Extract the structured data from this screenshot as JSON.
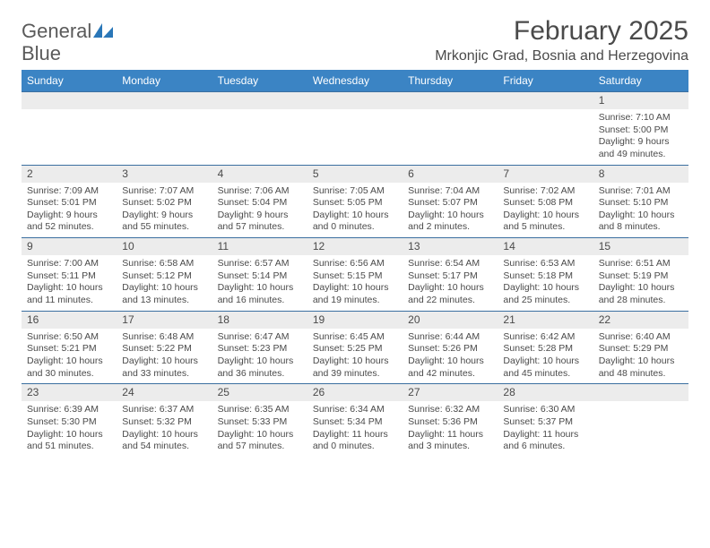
{
  "brand": {
    "name_part1": "General",
    "name_part2": "Blue"
  },
  "title": "February 2025",
  "location": "Mrkonjic Grad, Bosnia and Herzegovina",
  "colors": {
    "header_bar": "#3b84c4",
    "week_border": "#3b6fa0",
    "daynum_bg": "#ececec",
    "text": "#4a4a4a",
    "brand_blue": "#2a77b8",
    "background": "#ffffff"
  },
  "weekdays": [
    "Sunday",
    "Monday",
    "Tuesday",
    "Wednesday",
    "Thursday",
    "Friday",
    "Saturday"
  ],
  "weeks": [
    [
      {
        "day": "",
        "lines": []
      },
      {
        "day": "",
        "lines": []
      },
      {
        "day": "",
        "lines": []
      },
      {
        "day": "",
        "lines": []
      },
      {
        "day": "",
        "lines": []
      },
      {
        "day": "",
        "lines": []
      },
      {
        "day": "1",
        "lines": [
          "Sunrise: 7:10 AM",
          "Sunset: 5:00 PM",
          "Daylight: 9 hours and 49 minutes."
        ]
      }
    ],
    [
      {
        "day": "2",
        "lines": [
          "Sunrise: 7:09 AM",
          "Sunset: 5:01 PM",
          "Daylight: 9 hours and 52 minutes."
        ]
      },
      {
        "day": "3",
        "lines": [
          "Sunrise: 7:07 AM",
          "Sunset: 5:02 PM",
          "Daylight: 9 hours and 55 minutes."
        ]
      },
      {
        "day": "4",
        "lines": [
          "Sunrise: 7:06 AM",
          "Sunset: 5:04 PM",
          "Daylight: 9 hours and 57 minutes."
        ]
      },
      {
        "day": "5",
        "lines": [
          "Sunrise: 7:05 AM",
          "Sunset: 5:05 PM",
          "Daylight: 10 hours and 0 minutes."
        ]
      },
      {
        "day": "6",
        "lines": [
          "Sunrise: 7:04 AM",
          "Sunset: 5:07 PM",
          "Daylight: 10 hours and 2 minutes."
        ]
      },
      {
        "day": "7",
        "lines": [
          "Sunrise: 7:02 AM",
          "Sunset: 5:08 PM",
          "Daylight: 10 hours and 5 minutes."
        ]
      },
      {
        "day": "8",
        "lines": [
          "Sunrise: 7:01 AM",
          "Sunset: 5:10 PM",
          "Daylight: 10 hours and 8 minutes."
        ]
      }
    ],
    [
      {
        "day": "9",
        "lines": [
          "Sunrise: 7:00 AM",
          "Sunset: 5:11 PM",
          "Daylight: 10 hours and 11 minutes."
        ]
      },
      {
        "day": "10",
        "lines": [
          "Sunrise: 6:58 AM",
          "Sunset: 5:12 PM",
          "Daylight: 10 hours and 13 minutes."
        ]
      },
      {
        "day": "11",
        "lines": [
          "Sunrise: 6:57 AM",
          "Sunset: 5:14 PM",
          "Daylight: 10 hours and 16 minutes."
        ]
      },
      {
        "day": "12",
        "lines": [
          "Sunrise: 6:56 AM",
          "Sunset: 5:15 PM",
          "Daylight: 10 hours and 19 minutes."
        ]
      },
      {
        "day": "13",
        "lines": [
          "Sunrise: 6:54 AM",
          "Sunset: 5:17 PM",
          "Daylight: 10 hours and 22 minutes."
        ]
      },
      {
        "day": "14",
        "lines": [
          "Sunrise: 6:53 AM",
          "Sunset: 5:18 PM",
          "Daylight: 10 hours and 25 minutes."
        ]
      },
      {
        "day": "15",
        "lines": [
          "Sunrise: 6:51 AM",
          "Sunset: 5:19 PM",
          "Daylight: 10 hours and 28 minutes."
        ]
      }
    ],
    [
      {
        "day": "16",
        "lines": [
          "Sunrise: 6:50 AM",
          "Sunset: 5:21 PM",
          "Daylight: 10 hours and 30 minutes."
        ]
      },
      {
        "day": "17",
        "lines": [
          "Sunrise: 6:48 AM",
          "Sunset: 5:22 PM",
          "Daylight: 10 hours and 33 minutes."
        ]
      },
      {
        "day": "18",
        "lines": [
          "Sunrise: 6:47 AM",
          "Sunset: 5:23 PM",
          "Daylight: 10 hours and 36 minutes."
        ]
      },
      {
        "day": "19",
        "lines": [
          "Sunrise: 6:45 AM",
          "Sunset: 5:25 PM",
          "Daylight: 10 hours and 39 minutes."
        ]
      },
      {
        "day": "20",
        "lines": [
          "Sunrise: 6:44 AM",
          "Sunset: 5:26 PM",
          "Daylight: 10 hours and 42 minutes."
        ]
      },
      {
        "day": "21",
        "lines": [
          "Sunrise: 6:42 AM",
          "Sunset: 5:28 PM",
          "Daylight: 10 hours and 45 minutes."
        ]
      },
      {
        "day": "22",
        "lines": [
          "Sunrise: 6:40 AM",
          "Sunset: 5:29 PM",
          "Daylight: 10 hours and 48 minutes."
        ]
      }
    ],
    [
      {
        "day": "23",
        "lines": [
          "Sunrise: 6:39 AM",
          "Sunset: 5:30 PM",
          "Daylight: 10 hours and 51 minutes."
        ]
      },
      {
        "day": "24",
        "lines": [
          "Sunrise: 6:37 AM",
          "Sunset: 5:32 PM",
          "Daylight: 10 hours and 54 minutes."
        ]
      },
      {
        "day": "25",
        "lines": [
          "Sunrise: 6:35 AM",
          "Sunset: 5:33 PM",
          "Daylight: 10 hours and 57 minutes."
        ]
      },
      {
        "day": "26",
        "lines": [
          "Sunrise: 6:34 AM",
          "Sunset: 5:34 PM",
          "Daylight: 11 hours and 0 minutes."
        ]
      },
      {
        "day": "27",
        "lines": [
          "Sunrise: 6:32 AM",
          "Sunset: 5:36 PM",
          "Daylight: 11 hours and 3 minutes."
        ]
      },
      {
        "day": "28",
        "lines": [
          "Sunrise: 6:30 AM",
          "Sunset: 5:37 PM",
          "Daylight: 11 hours and 6 minutes."
        ]
      },
      {
        "day": "",
        "lines": []
      }
    ]
  ]
}
